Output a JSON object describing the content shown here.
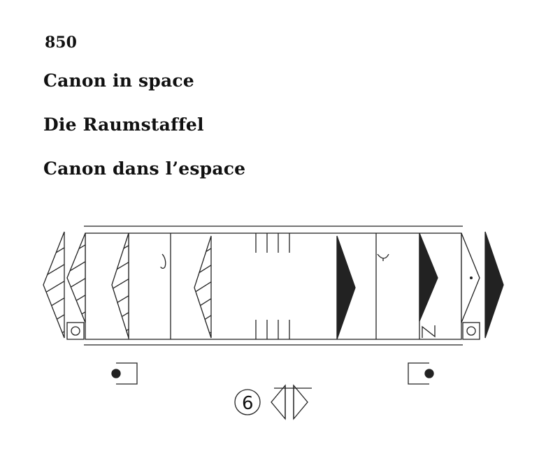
{
  "entry": {
    "number": "850",
    "titles": {
      "en": "Canon in space",
      "de": "Die Raumstaffel",
      "fr": "Canon dans l’espace"
    }
  },
  "notation": {
    "count_label": "6",
    "colors": {
      "ink": "#222222",
      "fill_dark": "#222222",
      "paper": "#ffffff"
    }
  }
}
